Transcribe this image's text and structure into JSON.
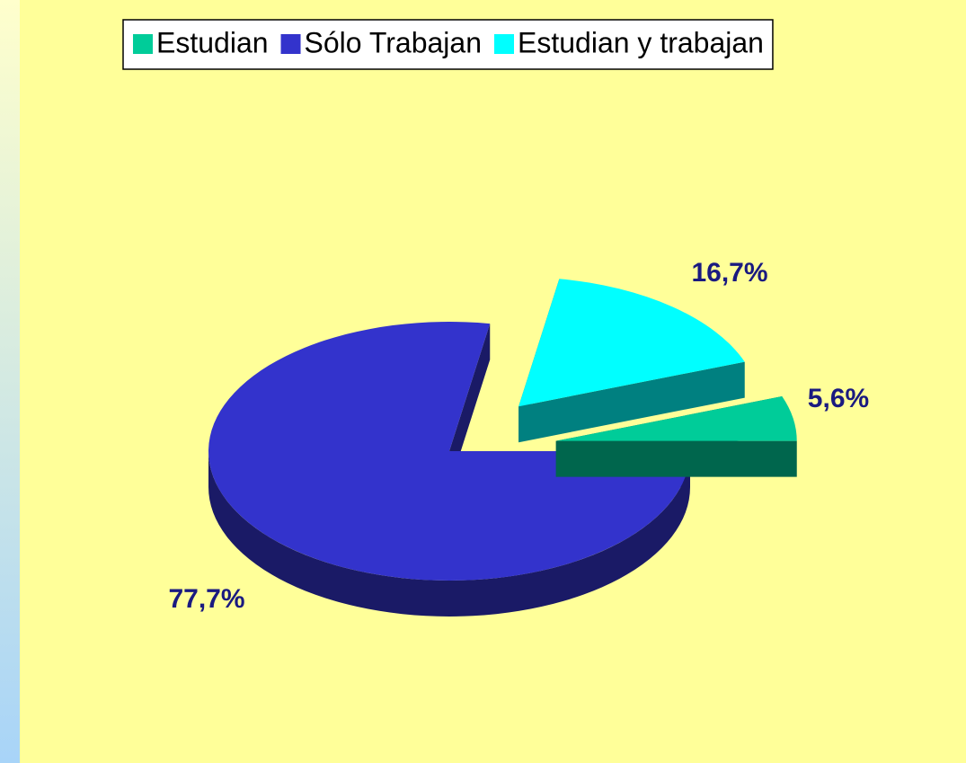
{
  "chart_data": {
    "type": "pie",
    "categories": [
      "Estudian",
      "Sólo Trabajan",
      "Estudian y trabajan"
    ],
    "values": [
      5.6,
      77.7,
      16.7
    ],
    "value_labels": [
      "5,6%",
      "77,7%",
      "16,7%"
    ],
    "colors": [
      "#00CC99",
      "#3333CC",
      "#00FFFF"
    ],
    "legend": "top"
  }
}
